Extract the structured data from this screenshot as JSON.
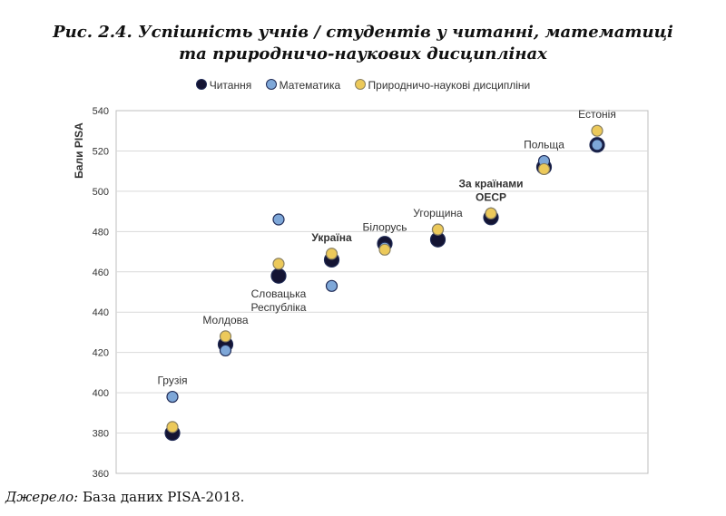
{
  "title_line1": "Рис. 2.4. Успішність учнів / студентів у читанні, математиці",
  "title_line2": "та природничо-наукових дисциплінах",
  "source_label": "Джерело:",
  "source_text": "База даних PISA-2018.",
  "colors": {
    "reading": "#141433",
    "math": "#7ea7d8",
    "science": "#ecc95a",
    "outline": "#1f2a55",
    "grid": "#d9d9d9"
  },
  "chart_data": {
    "type": "scatter",
    "title": "Рис. 2.4. Успішність учнів / студентів у читанні, математиці та природничо-наукових дисциплінах",
    "ylabel": "Бали PISA",
    "ylim": [
      360,
      540
    ],
    "yticks": [
      360,
      380,
      400,
      420,
      440,
      460,
      480,
      500,
      520,
      540
    ],
    "legend_position": "top",
    "grid": true,
    "categories": [
      "Грузія",
      "Молдова",
      "Словацька Республіка",
      "Україна",
      "Білорусь",
      "Угорщина",
      "За країнами ОЕСР",
      "Польща",
      "Естонія"
    ],
    "category_labels": [
      {
        "lines": [
          "Грузія"
        ],
        "bold": false
      },
      {
        "lines": [
          "Молдова"
        ],
        "bold": false
      },
      {
        "lines": [
          "Словацька",
          "Республіка"
        ],
        "bold": false
      },
      {
        "lines": [
          "Україна"
        ],
        "bold": true
      },
      {
        "lines": [
          "Білорусь"
        ],
        "bold": false
      },
      {
        "lines": [
          "Угорщина"
        ],
        "bold": false
      },
      {
        "lines": [
          "За країнами",
          "ОЕСР"
        ],
        "bold": true
      },
      {
        "lines": [
          "Польща"
        ],
        "bold": false
      },
      {
        "lines": [
          "Естонія"
        ],
        "bold": false
      }
    ],
    "series": [
      {
        "name": "Читання",
        "values": [
          380,
          424,
          458,
          466,
          474,
          476,
          487,
          512,
          523
        ]
      },
      {
        "name": "Математика",
        "values": [
          398,
          421,
          486,
          453,
          472,
          481,
          489,
          515,
          523
        ]
      },
      {
        "name": "Природничо-наукові дисципліни",
        "values": [
          383,
          428,
          464,
          469,
          471,
          481,
          489,
          511,
          530
        ]
      }
    ]
  }
}
